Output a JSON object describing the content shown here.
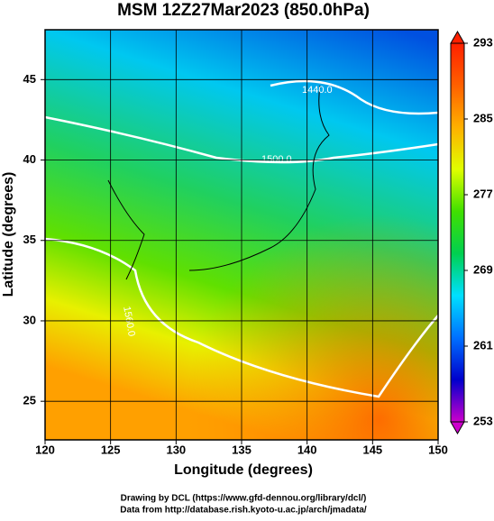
{
  "chart_data": {
    "type": "map",
    "title": "MSM 12Z27Mar2023 (850.0hPa)",
    "xlabel": "Longitude (degrees)",
    "ylabel": "Latitude  (degrees)",
    "xlim": [
      120,
      150
    ],
    "ylim": [
      22.6,
      48.1
    ],
    "xticks": [
      120,
      125,
      130,
      135,
      140,
      145,
      150
    ],
    "yticks": [
      25,
      30,
      35,
      40,
      45
    ],
    "grid": true,
    "colorbar": {
      "lim": [
        253,
        293
      ],
      "ticks": [
        253,
        261,
        269,
        277,
        285,
        293
      ],
      "colors": [
        "#cc00cc",
        "#0000cc",
        "#0070ff",
        "#00e0ff",
        "#00d050",
        "#40e000",
        "#e0ff00",
        "#ffb000",
        "#ff6000",
        "#ff2000"
      ]
    },
    "annotations": [
      "1440.0",
      "1500.0",
      "1560.0"
    ],
    "footer": [
      "Drawing by DCL (https://www.gfd-dennou.org/library/dcl/)",
      "Data from http://database.rish.kyoto-u.ac.jp/arch/jmadata/"
    ]
  }
}
